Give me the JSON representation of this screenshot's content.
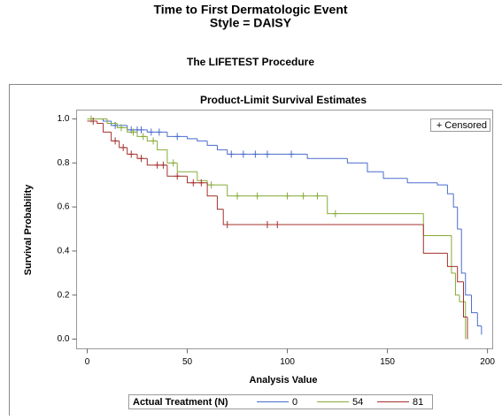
{
  "header": {
    "title": "Time to First Dermatologic Event",
    "subtitle": "Style = DAISY",
    "procedure": "The LIFETEST Procedure"
  },
  "chart_data": {
    "type": "step",
    "title": "Product-Limit Survival Estimates",
    "x_label": "Analysis Value",
    "y_label": "Survival Probability",
    "xlim": [
      -5.3,
      202.6
    ],
    "ylim": [
      -0.044,
      1.04
    ],
    "xticks": [
      0,
      50,
      100,
      150,
      200
    ],
    "yticks": [
      {
        "value": 0,
        "label": "0.0"
      },
      0.2,
      0.4,
      0.6,
      0.8,
      {
        "value": 1,
        "label": "1.0"
      }
    ],
    "censor_legend": "+ Censored",
    "legend_title": "Actual Treatment (N)",
    "series": [
      {
        "name": "0",
        "color": "#4a6ccc",
        "x": [
          0,
          8,
          12,
          20,
          30,
          40,
          50,
          55,
          60,
          65,
          70,
          110,
          130,
          140,
          148,
          160,
          175,
          180,
          183,
          185,
          187,
          189,
          192,
          195,
          197
        ],
        "values": [
          1.0,
          0.99,
          0.97,
          0.95,
          0.94,
          0.92,
          0.91,
          0.9,
          0.88,
          0.86,
          0.84,
          0.82,
          0.8,
          0.76,
          0.73,
          0.71,
          0.7,
          0.66,
          0.6,
          0.5,
          0.3,
          0.2,
          0.12,
          0.06,
          0.02
        ],
        "censor_x": [
          14,
          22,
          25,
          27,
          32,
          36,
          45,
          72,
          78,
          84,
          90,
          102
        ],
        "censor_values": [
          0.97,
          0.95,
          0.95,
          0.95,
          0.94,
          0.94,
          0.92,
          0.84,
          0.84,
          0.84,
          0.84,
          0.84
        ]
      },
      {
        "name": "54",
        "color": "#86ab36",
        "x": [
          0,
          10,
          15,
          20,
          25,
          30,
          35,
          40,
          45,
          55,
          60,
          70,
          120,
          168,
          182,
          184,
          186,
          189
        ],
        "values": [
          1.0,
          0.98,
          0.96,
          0.94,
          0.92,
          0.9,
          0.86,
          0.8,
          0.76,
          0.72,
          0.7,
          0.65,
          0.57,
          0.47,
          0.3,
          0.2,
          0.17,
          0.0
        ],
        "censor_x": [
          2,
          17,
          23,
          28,
          33,
          43,
          62,
          75,
          85,
          100,
          108,
          115,
          124
        ],
        "censor_values": [
          1.0,
          0.96,
          0.94,
          0.92,
          0.9,
          0.8,
          0.7,
          0.65,
          0.65,
          0.65,
          0.65,
          0.65,
          0.57
        ]
      },
      {
        "name": "81",
        "color": "#a3302c",
        "x": [
          0,
          5,
          8,
          12,
          16,
          20,
          25,
          30,
          40,
          50,
          60,
          65,
          68,
          168,
          180,
          185,
          188,
          190
        ],
        "values": [
          0.99,
          0.98,
          0.94,
          0.9,
          0.87,
          0.84,
          0.82,
          0.79,
          0.74,
          0.71,
          0.65,
          0.59,
          0.52,
          0.39,
          0.33,
          0.26,
          0.1,
          0.0
        ],
        "censor_x": [
          3,
          14,
          18,
          22,
          27,
          35,
          38,
          45,
          53,
          57,
          70,
          90,
          95
        ],
        "censor_values": [
          0.99,
          0.9,
          0.87,
          0.84,
          0.82,
          0.79,
          0.79,
          0.74,
          0.71,
          0.71,
          0.52,
          0.52,
          0.52
        ]
      }
    ]
  }
}
